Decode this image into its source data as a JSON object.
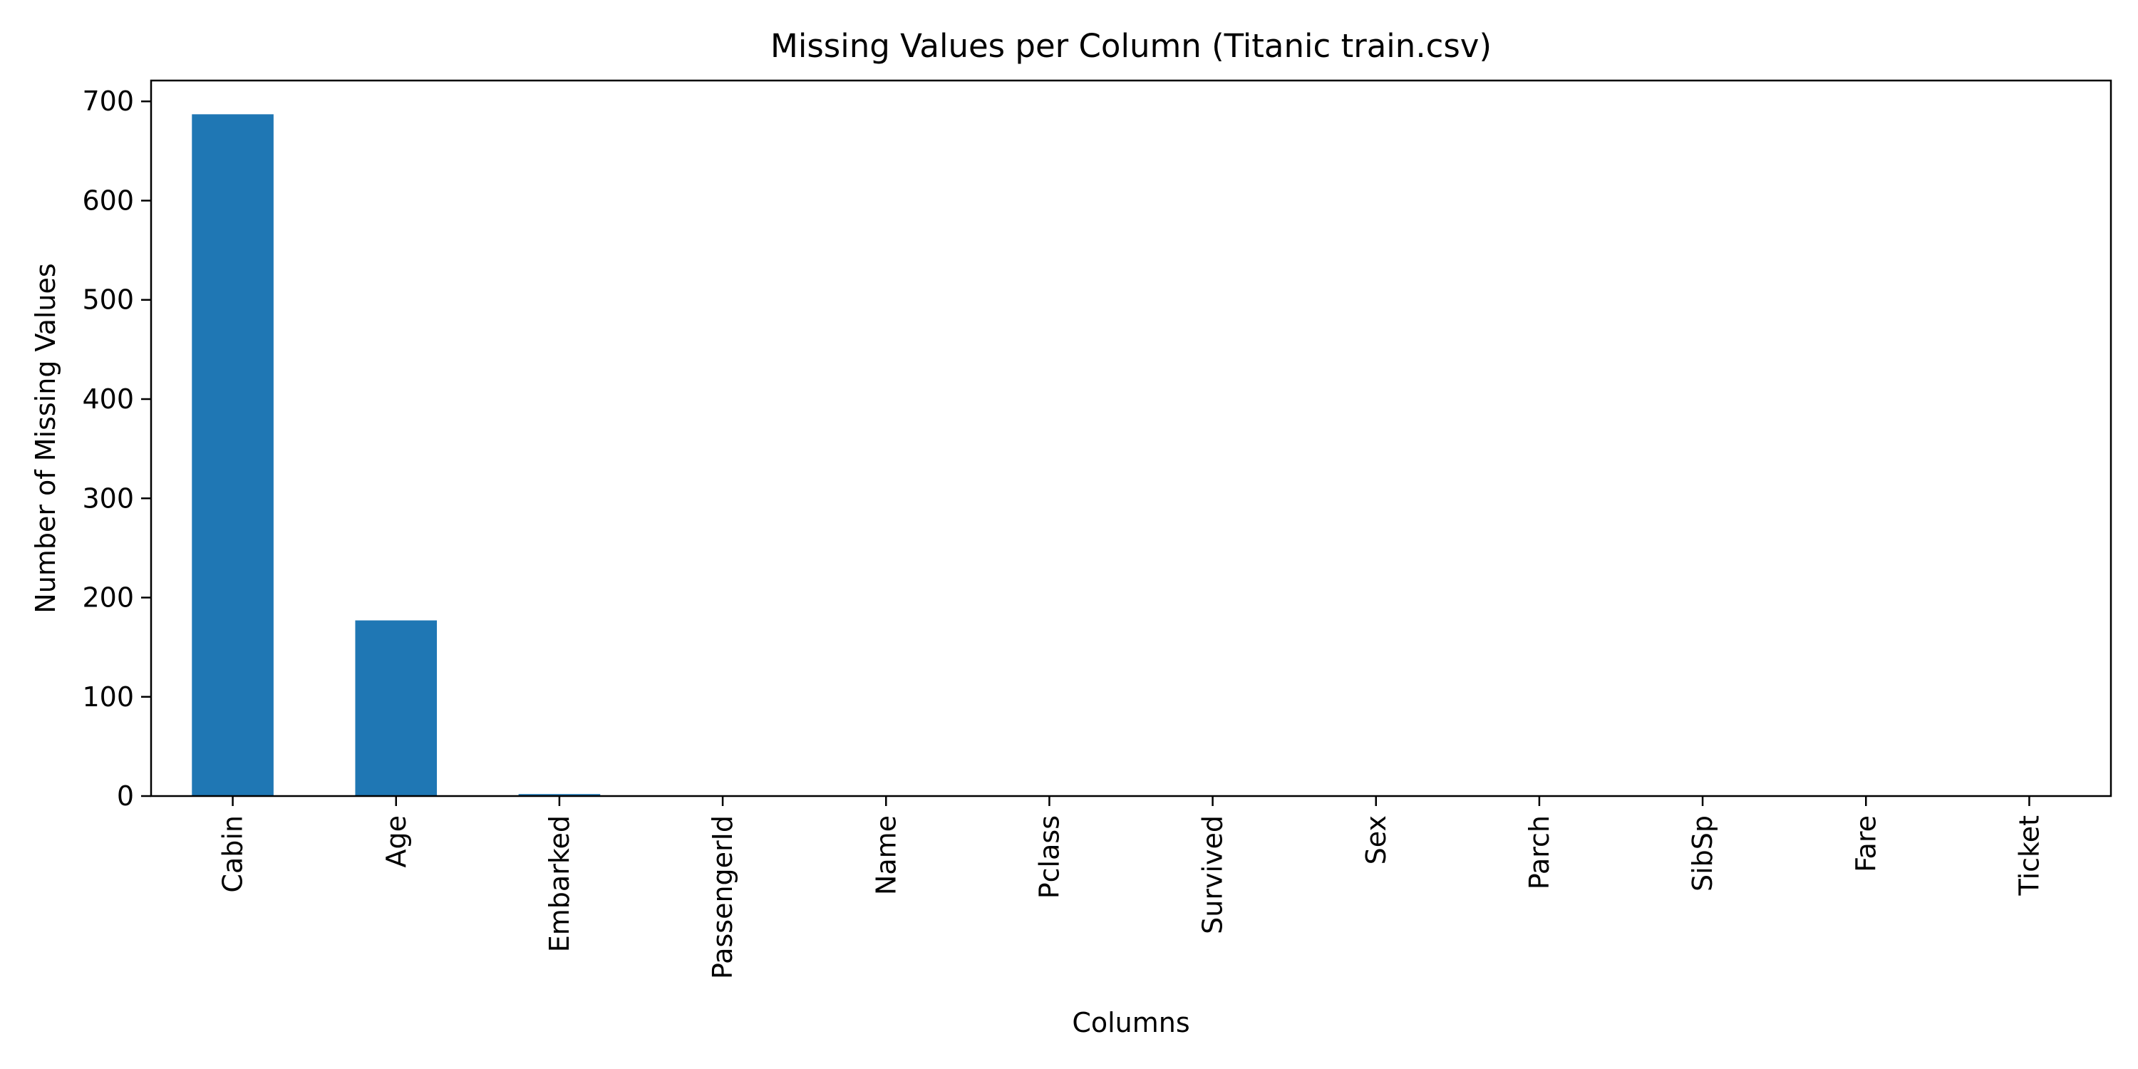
{
  "chart_data": {
    "type": "bar",
    "title": "Missing Values per Column (Titanic train.csv)",
    "xlabel": "Columns",
    "ylabel": "Number of Missing Values",
    "categories": [
      "Cabin",
      "Age",
      "Embarked",
      "PassengerId",
      "Name",
      "Pclass",
      "Survived",
      "Sex",
      "Parch",
      "SibSp",
      "Fare",
      "Ticket"
    ],
    "values": [
      687,
      177,
      2,
      0,
      0,
      0,
      0,
      0,
      0,
      0,
      0,
      0
    ],
    "ylim": [
      0,
      721
    ],
    "yticks": [
      0,
      100,
      200,
      300,
      400,
      500,
      600,
      700
    ],
    "grid": false,
    "legend": "none",
    "colors": {
      "bar": "#1f77b4",
      "axis": "#000000",
      "background": "#ffffff"
    }
  }
}
